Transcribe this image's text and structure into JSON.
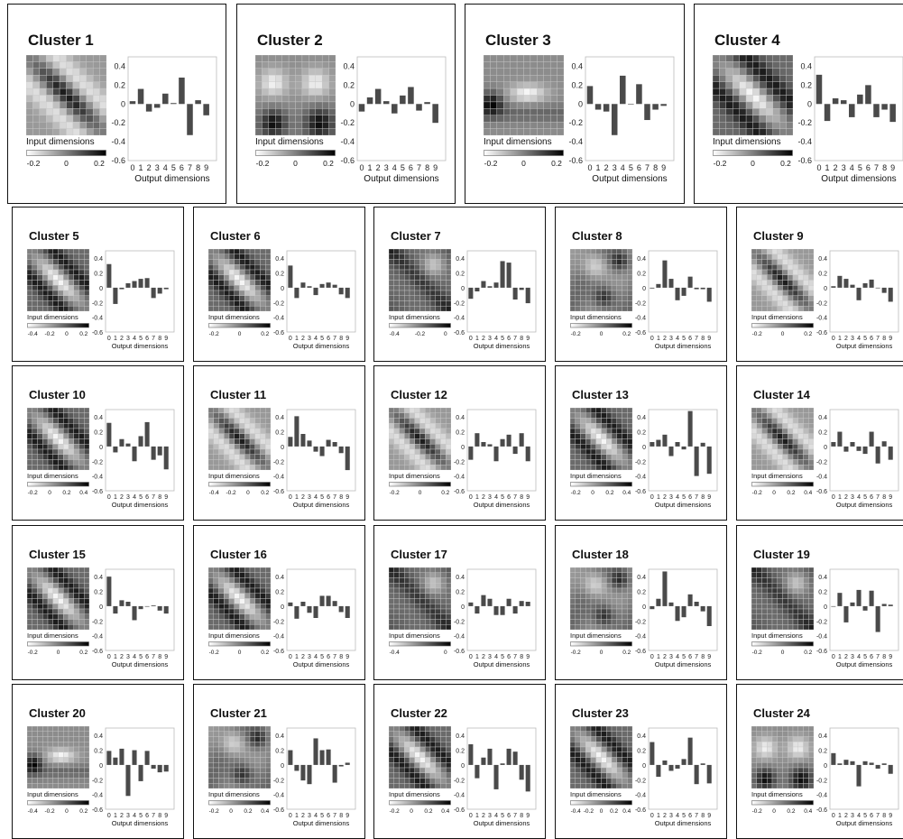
{
  "labels": {
    "input_axis": "Input dimensions",
    "output_axis": "Output dimensions",
    "y_ticks": [
      "0.4",
      "0.2",
      "0",
      "-0.2",
      "-0.4",
      "-0.6"
    ],
    "x_ticks": [
      "0",
      "1",
      "2",
      "3",
      "4",
      "5",
      "6",
      "7",
      "8",
      "9"
    ]
  },
  "colors": {
    "bar": "#4a4a4a",
    "frame": "#111111",
    "axis_box": "#bbbbbb"
  },
  "chart_data": [
    {
      "type": "heatmap+bar",
      "title": "Cluster 1",
      "heatmap_pattern": "diag-dark",
      "colorbar_ticks": [
        "-0.2",
        "0",
        "0.2"
      ],
      "x": [
        0,
        1,
        2,
        3,
        4,
        5,
        6,
        7,
        8,
        9
      ],
      "values": [
        0.03,
        0.16,
        -0.08,
        -0.04,
        0.11,
        0.01,
        0.28,
        -0.33,
        0.04,
        -0.12
      ],
      "ylim": [
        -0.6,
        0.5
      ]
    },
    {
      "type": "heatmap+bar",
      "title": "Cluster 2",
      "heatmap_pattern": "corners",
      "colorbar_ticks": [
        "-0.2",
        "0",
        "0.2"
      ],
      "x": [
        0,
        1,
        2,
        3,
        4,
        5,
        6,
        7,
        8,
        9
      ],
      "values": [
        -0.08,
        0.07,
        0.16,
        0.03,
        -0.1,
        0.09,
        0.18,
        -0.07,
        0.02,
        -0.2
      ],
      "ylim": [
        -0.6,
        0.5
      ]
    },
    {
      "type": "heatmap+bar",
      "title": "Cluster 3",
      "heatmap_pattern": "horiz-blob",
      "colorbar_ticks": [
        "-0.2",
        "0",
        "0.2"
      ],
      "x": [
        0,
        1,
        2,
        3,
        4,
        5,
        6,
        7,
        8,
        9
      ],
      "values": [
        0.19,
        -0.06,
        -0.08,
        -0.33,
        0.3,
        0.0,
        0.21,
        -0.17,
        -0.06,
        -0.02
      ],
      "ylim": [
        -0.6,
        0.5
      ]
    },
    {
      "type": "heatmap+bar",
      "title": "Cluster 4",
      "heatmap_pattern": "diag-bright",
      "colorbar_ticks": [
        "-0.2",
        "0",
        "0.2"
      ],
      "x": [
        0,
        1,
        2,
        3,
        4,
        5,
        6,
        7,
        8,
        9
      ],
      "values": [
        0.31,
        -0.18,
        0.06,
        0.04,
        -0.14,
        0.1,
        0.2,
        -0.14,
        -0.06,
        -0.19
      ],
      "ylim": [
        -0.6,
        0.5
      ]
    },
    {
      "type": "heatmap+bar",
      "title": "Cluster 5",
      "heatmap_pattern": "diag-bright",
      "colorbar_ticks": [
        "-0.4",
        "-0.2",
        "0",
        "0.2"
      ],
      "x": [
        0,
        1,
        2,
        3,
        4,
        5,
        6,
        7,
        8,
        9
      ],
      "values": [
        0.32,
        -0.22,
        -0.02,
        0.06,
        0.09,
        0.12,
        0.13,
        -0.14,
        -0.08,
        -0.02
      ],
      "ylim": [
        -0.6,
        0.5
      ]
    },
    {
      "type": "heatmap+bar",
      "title": "Cluster 6",
      "heatmap_pattern": "diag-bright",
      "colorbar_ticks": [
        "-0.2",
        "0",
        "0.2"
      ],
      "x": [
        0,
        1,
        2,
        3,
        4,
        5,
        6,
        7,
        8,
        9
      ],
      "values": [
        0.3,
        -0.14,
        0.07,
        0.02,
        -0.1,
        0.05,
        0.07,
        0.04,
        -0.09,
        -0.14
      ],
      "ylim": [
        -0.6,
        0.5
      ]
    },
    {
      "type": "heatmap+bar",
      "title": "Cluster 7",
      "heatmap_pattern": "dark-mixed",
      "colorbar_ticks": [
        "-0.4",
        "-0.2",
        "0"
      ],
      "x": [
        0,
        1,
        2,
        3,
        4,
        5,
        6,
        7,
        8,
        9
      ],
      "values": [
        -0.15,
        -0.05,
        0.09,
        0.02,
        0.07,
        0.36,
        0.34,
        -0.16,
        -0.03,
        -0.21
      ],
      "ylim": [
        -0.6,
        0.5
      ]
    },
    {
      "type": "heatmap+bar",
      "title": "Cluster 8",
      "heatmap_pattern": "swirl",
      "colorbar_ticks": [
        "-0.2",
        "0",
        "0.2"
      ],
      "x": [
        0,
        1,
        2,
        3,
        4,
        5,
        6,
        7,
        8,
        9
      ],
      "values": [
        -0.01,
        0.05,
        0.37,
        0.12,
        -0.17,
        -0.11,
        0.15,
        -0.02,
        -0.02,
        -0.19
      ],
      "ylim": [
        -0.6,
        0.5
      ]
    },
    {
      "type": "heatmap+bar",
      "title": "Cluster 9",
      "heatmap_pattern": "diag-dark",
      "colorbar_ticks": [
        "-0.2",
        "0",
        "0.2"
      ],
      "x": [
        0,
        1,
        2,
        3,
        4,
        5,
        6,
        7,
        8,
        9
      ],
      "values": [
        0.02,
        0.16,
        0.12,
        0.04,
        -0.17,
        0.06,
        0.11,
        0.0,
        -0.07,
        -0.19
      ],
      "ylim": [
        -0.6,
        0.5
      ]
    },
    {
      "type": "heatmap+bar",
      "title": "Cluster 10",
      "heatmap_pattern": "diag-bright",
      "colorbar_ticks": [
        "-0.2",
        "0",
        "0.2",
        "0.4"
      ],
      "x": [
        0,
        1,
        2,
        3,
        4,
        5,
        6,
        7,
        8,
        9
      ],
      "values": [
        0.32,
        -0.08,
        0.1,
        0.04,
        -0.2,
        0.14,
        0.33,
        -0.18,
        -0.12,
        -0.31
      ],
      "ylim": [
        -0.6,
        0.5
      ]
    },
    {
      "type": "heatmap+bar",
      "title": "Cluster 11",
      "heatmap_pattern": "diag-dark",
      "colorbar_ticks": [
        "-0.4",
        "-0.2",
        "0",
        "0.2"
      ],
      "x": [
        0,
        1,
        2,
        3,
        4,
        5,
        6,
        7,
        8,
        9
      ],
      "values": [
        0.13,
        0.41,
        0.17,
        0.08,
        -0.07,
        -0.13,
        0.09,
        0.06,
        -0.09,
        -0.32
      ],
      "ylim": [
        -0.6,
        0.5
      ]
    },
    {
      "type": "heatmap+bar",
      "title": "Cluster 12",
      "heatmap_pattern": "diag-dark",
      "colorbar_ticks": [
        "-0.2",
        "0",
        "0.2"
      ],
      "x": [
        0,
        1,
        2,
        3,
        4,
        5,
        6,
        7,
        8,
        9
      ],
      "values": [
        -0.18,
        0.18,
        0.06,
        0.03,
        -0.2,
        0.1,
        0.16,
        -0.1,
        0.18,
        -0.2
      ],
      "ylim": [
        -0.6,
        0.5
      ]
    },
    {
      "type": "heatmap+bar",
      "title": "Cluster 13",
      "heatmap_pattern": "diag-bright",
      "colorbar_ticks": [
        "-0.2",
        "0",
        "0.2",
        "0.4"
      ],
      "x": [
        0,
        1,
        2,
        3,
        4,
        5,
        6,
        7,
        8,
        9
      ],
      "values": [
        0.06,
        0.09,
        0.16,
        -0.13,
        0.06,
        -0.04,
        0.48,
        -0.4,
        0.05,
        -0.37
      ],
      "ylim": [
        -0.6,
        0.5
      ]
    },
    {
      "type": "heatmap+bar",
      "title": "Cluster 14",
      "heatmap_pattern": "diag-dark",
      "colorbar_ticks": [
        "-0.2",
        "0",
        "0.2",
        "0.4"
      ],
      "x": [
        0,
        1,
        2,
        3,
        4,
        5,
        6,
        7,
        8,
        9
      ],
      "values": [
        0.06,
        0.2,
        -0.07,
        0.06,
        -0.06,
        -0.1,
        0.2,
        -0.23,
        0.07,
        -0.18
      ],
      "ylim": [
        -0.6,
        0.5
      ]
    },
    {
      "type": "heatmap+bar",
      "title": "Cluster 15",
      "heatmap_pattern": "diag-bright",
      "colorbar_ticks": [
        "-0.2",
        "0",
        "0.2"
      ],
      "x": [
        0,
        1,
        2,
        3,
        4,
        5,
        6,
        7,
        8,
        9
      ],
      "values": [
        0.4,
        -0.1,
        0.08,
        0.06,
        -0.19,
        -0.04,
        0.0,
        0.01,
        -0.06,
        -0.1
      ],
      "ylim": [
        -0.6,
        0.5
      ]
    },
    {
      "type": "heatmap+bar",
      "title": "Cluster 16",
      "heatmap_pattern": "diag-bright",
      "colorbar_ticks": [
        "-0.2",
        "0",
        "0.2"
      ],
      "x": [
        0,
        1,
        2,
        3,
        4,
        5,
        6,
        7,
        8,
        9
      ],
      "values": [
        0.05,
        -0.17,
        0.06,
        -0.09,
        -0.16,
        0.14,
        0.14,
        0.07,
        -0.08,
        -0.16
      ],
      "ylim": [
        -0.6,
        0.5
      ]
    },
    {
      "type": "heatmap+bar",
      "title": "Cluster 17",
      "heatmap_pattern": "dark-mixed",
      "colorbar_ticks": [
        "-0.4",
        "0"
      ],
      "x": [
        0,
        1,
        2,
        3,
        4,
        5,
        6,
        7,
        8,
        9
      ],
      "values": [
        0.05,
        -0.1,
        0.15,
        0.1,
        -0.12,
        -0.12,
        0.1,
        -0.1,
        0.07,
        0.06
      ],
      "ylim": [
        -0.6,
        0.5
      ]
    },
    {
      "type": "heatmap+bar",
      "title": "Cluster 18",
      "heatmap_pattern": "swirl",
      "colorbar_ticks": [
        "-0.2",
        "0",
        "0.2"
      ],
      "x": [
        0,
        1,
        2,
        3,
        4,
        5,
        6,
        7,
        8,
        9
      ],
      "values": [
        -0.04,
        0.1,
        0.47,
        0.05,
        -0.2,
        -0.15,
        0.16,
        0.06,
        -0.07,
        -0.27
      ],
      "ylim": [
        -0.6,
        0.5
      ]
    },
    {
      "type": "heatmap+bar",
      "title": "Cluster 19",
      "heatmap_pattern": "dark-mixed",
      "colorbar_ticks": [
        "-0.2",
        "0",
        "0.2"
      ],
      "x": [
        0,
        1,
        2,
        3,
        4,
        5,
        6,
        7,
        8,
        9
      ],
      "values": [
        0.0,
        0.18,
        -0.22,
        0.05,
        0.22,
        -0.06,
        0.21,
        -0.35,
        0.03,
        0.02
      ],
      "ylim": [
        -0.6,
        0.5
      ]
    },
    {
      "type": "heatmap+bar",
      "title": "Cluster 20",
      "heatmap_pattern": "horiz-blob",
      "colorbar_ticks": [
        "-0.4",
        "-0.2",
        "0",
        "0.2"
      ],
      "x": [
        0,
        1,
        2,
        3,
        4,
        5,
        6,
        7,
        8,
        9
      ],
      "values": [
        0.19,
        0.1,
        0.22,
        -0.42,
        0.2,
        -0.22,
        0.19,
        -0.05,
        -0.1,
        -0.09
      ],
      "ylim": [
        -0.6,
        0.5
      ]
    },
    {
      "type": "heatmap+bar",
      "title": "Cluster 21",
      "heatmap_pattern": "swirl",
      "colorbar_ticks": [
        "-0.2",
        "0",
        "0.2",
        "0.4"
      ],
      "x": [
        0,
        1,
        2,
        3,
        4,
        5,
        6,
        7,
        8,
        9
      ],
      "values": [
        0.2,
        -0.08,
        -0.21,
        -0.26,
        0.36,
        0.2,
        0.21,
        -0.24,
        -0.02,
        0.03
      ],
      "ylim": [
        -0.6,
        0.5
      ]
    },
    {
      "type": "heatmap+bar",
      "title": "Cluster 22",
      "heatmap_pattern": "diag-bright",
      "colorbar_ticks": [
        "-0.2",
        "0",
        "0.2",
        "0.4"
      ],
      "x": [
        0,
        1,
        2,
        3,
        4,
        5,
        6,
        7,
        8,
        9
      ],
      "values": [
        0.28,
        -0.18,
        0.1,
        0.22,
        -0.33,
        0.02,
        0.22,
        0.18,
        -0.2,
        -0.36
      ],
      "ylim": [
        -0.6,
        0.5
      ]
    },
    {
      "type": "heatmap+bar",
      "title": "Cluster 23",
      "heatmap_pattern": "diag-bright",
      "colorbar_ticks": [
        "-0.4",
        "-0.2",
        "0",
        "0.2",
        "0.4"
      ],
      "x": [
        0,
        1,
        2,
        3,
        4,
        5,
        6,
        7,
        8,
        9
      ],
      "values": [
        0.31,
        -0.16,
        0.06,
        -0.08,
        -0.05,
        0.08,
        0.37,
        -0.26,
        0.02,
        -0.25
      ],
      "ylim": [
        -0.6,
        0.5
      ]
    },
    {
      "type": "heatmap+bar",
      "title": "Cluster 24",
      "heatmap_pattern": "corners",
      "colorbar_ticks": [
        "-0.2",
        "0",
        "0.2",
        "0.4"
      ],
      "x": [
        0,
        1,
        2,
        3,
        4,
        5,
        6,
        7,
        8,
        9
      ],
      "values": [
        0.16,
        0.02,
        0.07,
        0.05,
        -0.29,
        0.05,
        0.03,
        -0.05,
        0.02,
        -0.12
      ],
      "ylim": [
        -0.6,
        0.5
      ]
    }
  ]
}
